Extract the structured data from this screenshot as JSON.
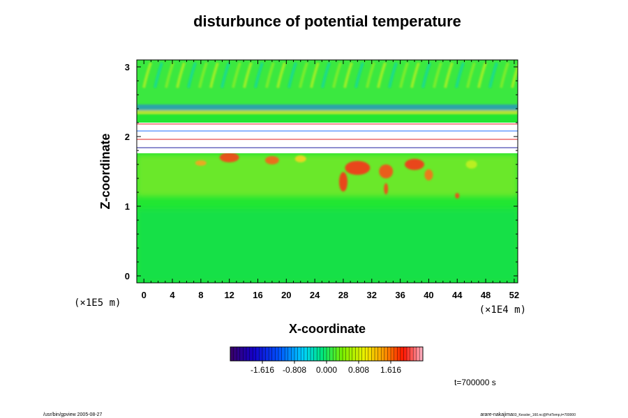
{
  "chart_data": {
    "type": "heatmap",
    "title": "disturbunce of potential temperature",
    "xlabel": "X-coordinate",
    "ylabel": "Z-coordinate",
    "x_unit": "(×1E4 m)",
    "y_unit": "(×1E5 m)",
    "xlim": [
      -1,
      52.5
    ],
    "ylim": [
      -0.1,
      3.1
    ],
    "x_ticks": [
      "0",
      "4",
      "8",
      "12",
      "16",
      "20",
      "24",
      "28",
      "32",
      "36",
      "40",
      "44",
      "48",
      "52"
    ],
    "y_ticks": [
      "0",
      "1",
      "2",
      "3"
    ],
    "colorbar": {
      "range": [
        -2.424,
        2.424
      ],
      "tick_labels": [
        "-1.616",
        "-0.808",
        "0.000",
        "0.808",
        "1.616"
      ],
      "tick_values": [
        -1.616,
        -0.808,
        0.0,
        0.808,
        1.616
      ]
    },
    "time_label": "t=700000 s",
    "footer_left": "/usr/bin/gpview 2005-08-27",
    "footer_right_main": "arare-nakajima",
    "footer_right_sub": "03_Kessler_160.nc@PotTemp,t=700000",
    "colors": {
      "background_field": "#22e632",
      "upper_field": "#2ee63c",
      "warm_anomaly": "#ff2a14",
      "saturated_layer": "#ffffff"
    }
  }
}
